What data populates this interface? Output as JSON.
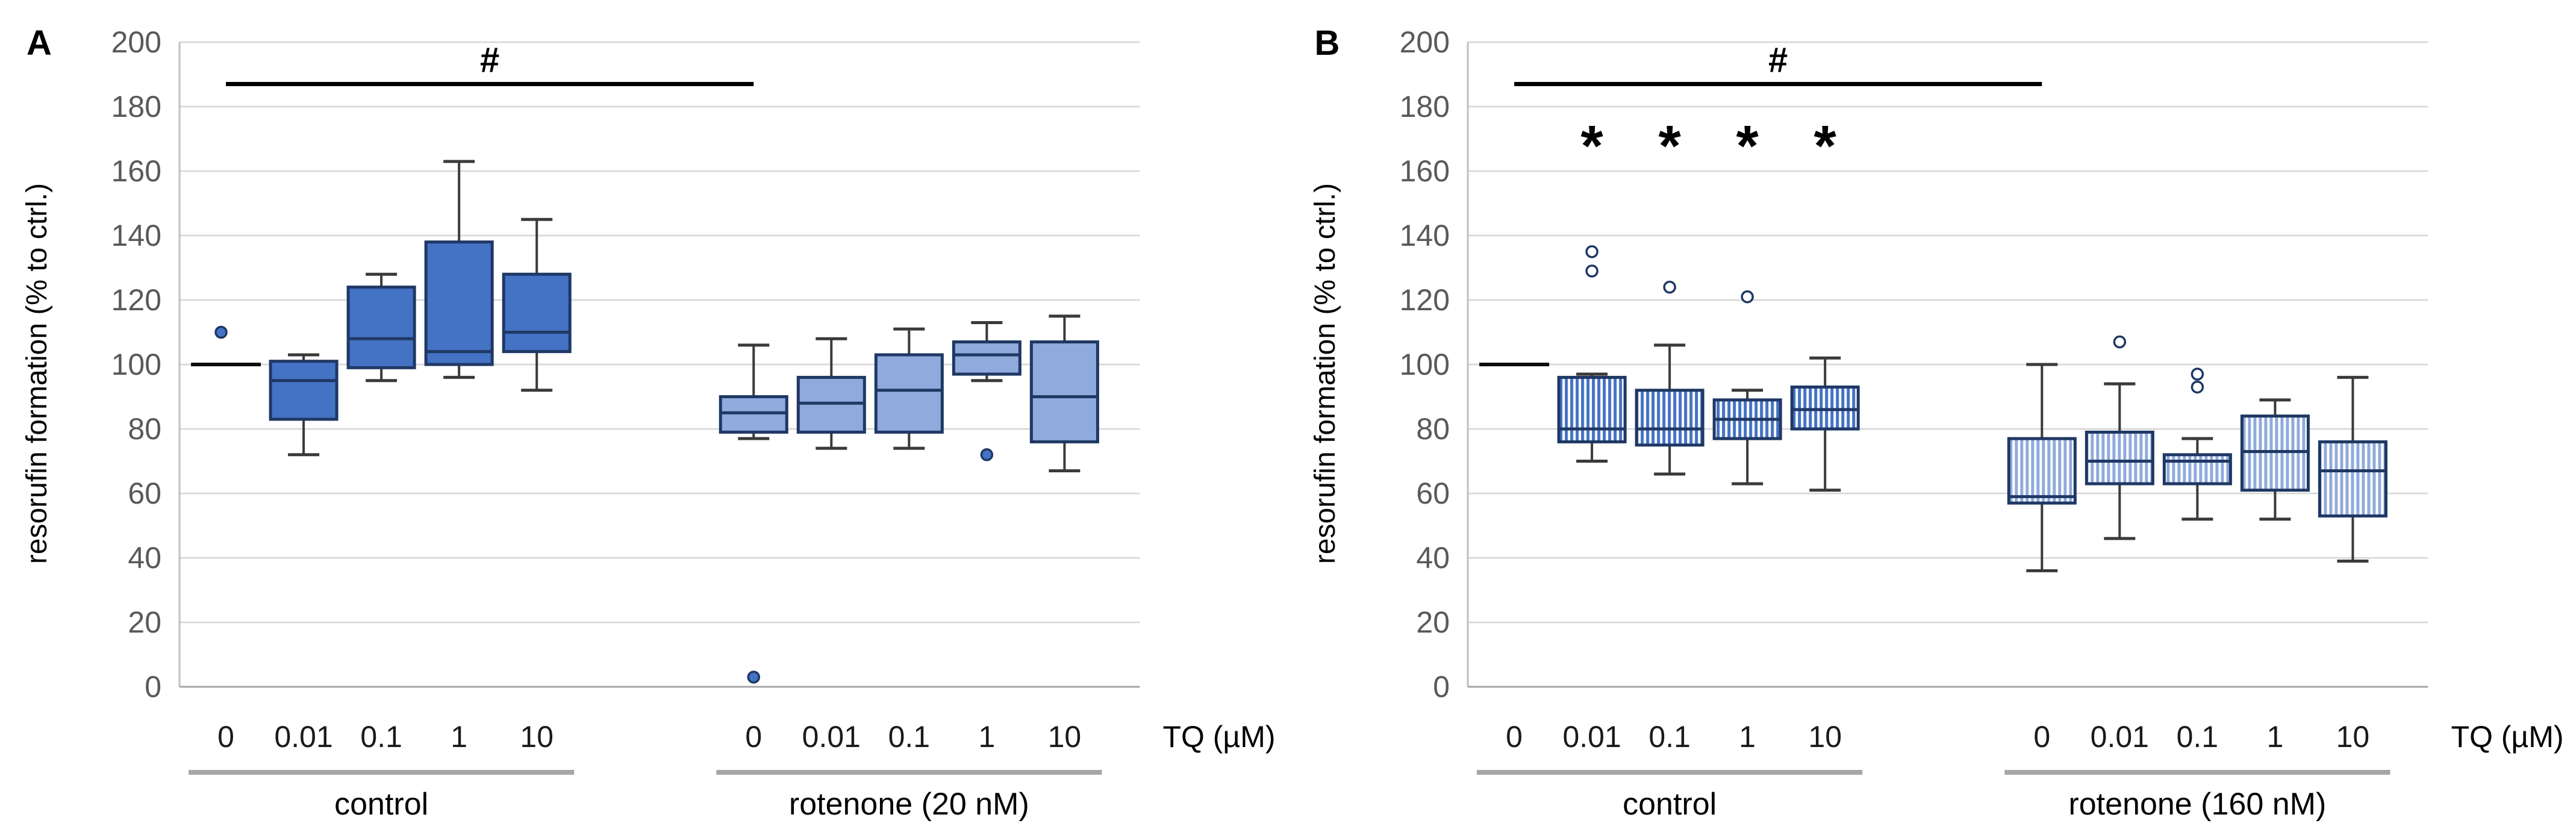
{
  "figure": {
    "background": "#ffffff"
  },
  "style": {
    "gridline_color": "#d6d6d6",
    "axis_line_color": "#bfbfbf",
    "baseline_color": "#a6a6a6",
    "ytick_color": "#595959",
    "xtick_color": "#1a1a1a",
    "text_color": "#000000",
    "box_border_color": "#1f3864",
    "whisker_color": "#3a3a3a",
    "group_underline_color": "#a6a6a6",
    "control_fill": "#4472c4",
    "rotenone_fill": "#8faadc",
    "outlier_fill_solid": "#4472c4",
    "outlier_fill_hollow": "#ffffff"
  },
  "chart_data": [
    {
      "type": "box",
      "panel_label": "A",
      "ylabel": "resorufin formation (% to ctrl.)",
      "x_axis_title": "TQ (µM)",
      "ylim": [
        0,
        200
      ],
      "ytick_step": 20,
      "grid": true,
      "significance_bar": {
        "label": "#",
        "y": 187,
        "from": {
          "group": 0,
          "index": 0
        },
        "to": {
          "group": 1,
          "index": 0
        }
      },
      "asterisks": {
        "label": "*",
        "y": 172,
        "positions": []
      },
      "groups": [
        {
          "label": "control",
          "fill_style": "solid",
          "fill_color": "#4472c4",
          "boxes": [
            {
              "x": "0",
              "line_only": true,
              "value": 100,
              "outliers": [
                110
              ]
            },
            {
              "x": "0.01",
              "whisker_low": 72,
              "q1": 83,
              "median": 95,
              "q3": 101,
              "whisker_high": 103,
              "outliers": []
            },
            {
              "x": "0.1",
              "whisker_low": 95,
              "q1": 99,
              "median": 108,
              "q3": 124,
              "whisker_high": 128,
              "outliers": []
            },
            {
              "x": "1",
              "whisker_low": 96,
              "q1": 100,
              "median": 104,
              "q3": 138,
              "whisker_high": 163,
              "outliers": []
            },
            {
              "x": "10",
              "whisker_low": 92,
              "q1": 104,
              "median": 110,
              "q3": 128,
              "whisker_high": 145,
              "outliers": []
            }
          ]
        },
        {
          "label": "rotenone (20 nM)",
          "fill_style": "solid",
          "fill_color": "#8faadc",
          "boxes": [
            {
              "x": "0",
              "whisker_low": 77,
              "q1": 79,
              "median": 85,
              "q3": 90,
              "whisker_high": 106,
              "outliers": [
                3
              ]
            },
            {
              "x": "0.01",
              "whisker_low": 74,
              "q1": 79,
              "median": 88,
              "q3": 96,
              "whisker_high": 108,
              "outliers": []
            },
            {
              "x": "0.1",
              "whisker_low": 74,
              "q1": 79,
              "median": 92,
              "q3": 103,
              "whisker_high": 111,
              "outliers": []
            },
            {
              "x": "1",
              "whisker_low": 95,
              "q1": 97,
              "median": 103,
              "q3": 107,
              "whisker_high": 113,
              "outliers": [
                72
              ]
            },
            {
              "x": "10",
              "whisker_low": 67,
              "q1": 76,
              "median": 90,
              "q3": 107,
              "whisker_high": 115,
              "outliers": []
            }
          ]
        }
      ]
    },
    {
      "type": "box",
      "panel_label": "B",
      "ylabel": "resorufin formation (% to ctrl.)",
      "x_axis_title": "TQ (µM)",
      "ylim": [
        0,
        200
      ],
      "ytick_step": 20,
      "grid": true,
      "significance_bar": {
        "label": "#",
        "y": 187,
        "from": {
          "group": 0,
          "index": 0
        },
        "to": {
          "group": 1,
          "index": 0
        }
      },
      "asterisks": {
        "label": "*",
        "y": 172,
        "positions": [
          {
            "group": 0,
            "index": 1
          },
          {
            "group": 0,
            "index": 2
          },
          {
            "group": 0,
            "index": 3
          },
          {
            "group": 0,
            "index": 4
          }
        ]
      },
      "groups": [
        {
          "label": "control",
          "fill_style": "striped",
          "fill_color": "#4472c4",
          "boxes": [
            {
              "x": "0",
              "line_only": true,
              "value": 100,
              "outliers": []
            },
            {
              "x": "0.01",
              "whisker_low": 70,
              "q1": 76,
              "median": 80,
              "q3": 96,
              "whisker_high": 97,
              "outliers": [
                129,
                135
              ]
            },
            {
              "x": "0.1",
              "whisker_low": 66,
              "q1": 75,
              "median": 80,
              "q3": 92,
              "whisker_high": 106,
              "outliers": [
                124
              ]
            },
            {
              "x": "1",
              "whisker_low": 63,
              "q1": 77,
              "median": 83,
              "q3": 89,
              "whisker_high": 92,
              "outliers": [
                121
              ]
            },
            {
              "x": "10",
              "whisker_low": 61,
              "q1": 80,
              "median": 86,
              "q3": 93,
              "whisker_high": 102,
              "outliers": []
            }
          ]
        },
        {
          "label": "rotenone (160 nM)",
          "fill_style": "striped",
          "fill_color": "#8faadc",
          "boxes": [
            {
              "x": "0",
              "whisker_low": 36,
              "q1": 57,
              "median": 59,
              "q3": 77,
              "whisker_high": 100,
              "outliers": []
            },
            {
              "x": "0.01",
              "whisker_low": 46,
              "q1": 63,
              "median": 70,
              "q3": 79,
              "whisker_high": 94,
              "outliers": [
                107
              ]
            },
            {
              "x": "0.1",
              "whisker_low": 52,
              "q1": 63,
              "median": 70,
              "q3": 72,
              "whisker_high": 77,
              "outliers": [
                93,
                97
              ]
            },
            {
              "x": "1",
              "whisker_low": 52,
              "q1": 61,
              "median": 73,
              "q3": 84,
              "whisker_high": 89,
              "outliers": []
            },
            {
              "x": "10",
              "whisker_low": 39,
              "q1": 53,
              "median": 67,
              "q3": 76,
              "whisker_high": 96,
              "outliers": []
            }
          ]
        }
      ]
    }
  ]
}
